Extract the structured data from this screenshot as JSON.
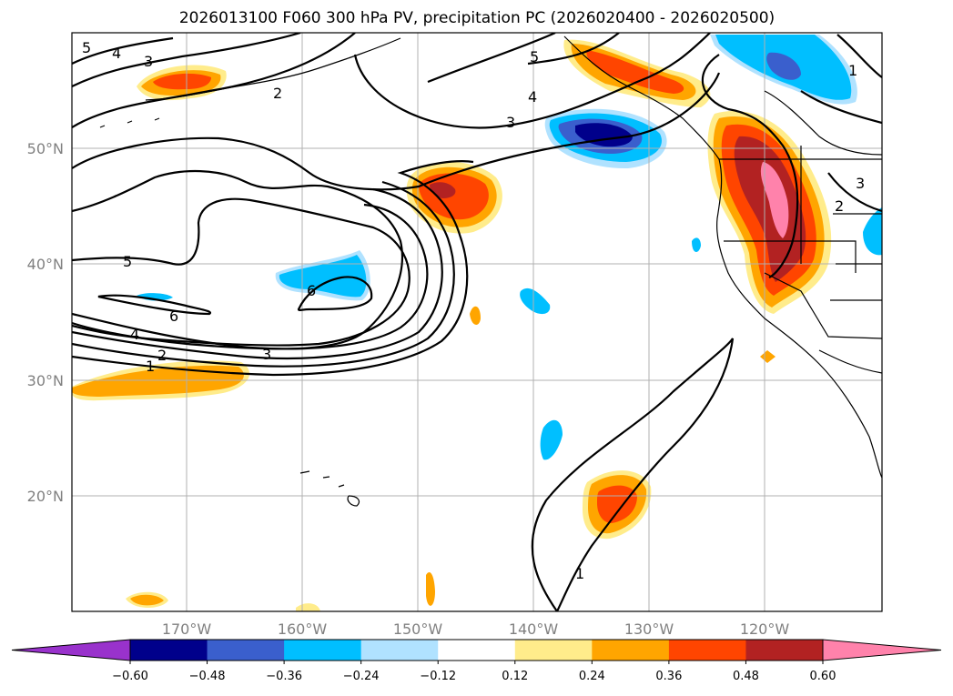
{
  "title": "2026013100 F060 300 hPa PV, precipitation PC (2026020400 - 2026020500)",
  "map": {
    "lat_labels": [
      "50°N",
      "40°N",
      "30°N",
      "20°N"
    ],
    "lon_labels": [
      "170°W",
      "160°W",
      "150°W",
      "140°W",
      "130°W",
      "120°W"
    ],
    "extent_lon": [
      -180,
      -110
    ],
    "extent_lat": [
      10,
      60
    ]
  },
  "contour_labels": {
    "pv_5_nw": "5",
    "pv_4_nw": "4",
    "pv_3_nw": "3",
    "pv_2_nw": "2",
    "pv_5_ne": "5",
    "pv_4_ne": "4",
    "pv_3_ne": "3",
    "pv_5_w": "5",
    "pv_6_w": "6",
    "pv_6_c": "6",
    "pv_4_w": "4",
    "pv_2_w": "2",
    "pv_1_w": "1",
    "pv_3_s": "3",
    "pv_1_s": "1",
    "pv_2_e": "2",
    "pv_3_e": "3",
    "pv_1_e": "1"
  },
  "colorbar": {
    "ticks": [
      "−0.60",
      "−0.48",
      "−0.36",
      "−0.24",
      "−0.12",
      "0.12",
      "0.24",
      "0.36",
      "0.48",
      "0.60"
    ],
    "colors": [
      "#9932cc",
      "#00008b",
      "#3a5fcd",
      "#00bfff",
      "#b0e2ff",
      "#ffffff",
      "#ffec8b",
      "#ffa500",
      "#ff4500",
      "#b22222",
      "#ff82ab"
    ]
  }
}
